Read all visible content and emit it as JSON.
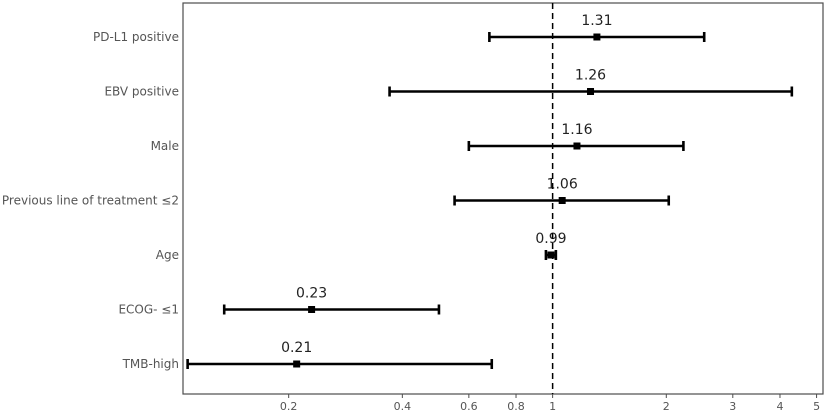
{
  "chart_data": {
    "type": "forest",
    "x_scale": "log",
    "xlim": [
      0.105,
      5.2
    ],
    "reference_line": 1,
    "x_ticks": [
      0.2,
      0.4,
      0.6,
      0.8,
      1,
      2,
      3,
      4,
      5
    ],
    "x_tick_labels": [
      "0.2",
      "0.4",
      "0.6",
      "0.8",
      "1",
      "2",
      "3",
      "4",
      "5"
    ],
    "grid": false,
    "rows": [
      {
        "label": "PD-L1 positive",
        "estimate": 1.31,
        "estimate_label": "1.31",
        "lower": 0.68,
        "upper": 2.52
      },
      {
        "label": "EBV positive",
        "estimate": 1.26,
        "estimate_label": "1.26",
        "lower": 0.37,
        "upper": 4.3
      },
      {
        "label": "Male",
        "estimate": 1.16,
        "estimate_label": "1.16",
        "lower": 0.6,
        "upper": 2.22
      },
      {
        "label": "Previous line of treatment ≤2",
        "estimate": 1.06,
        "estimate_label": "1.06",
        "lower": 0.55,
        "upper": 2.03
      },
      {
        "label": "Age",
        "estimate": 0.99,
        "estimate_label": "0.99",
        "lower": 0.96,
        "upper": 1.02
      },
      {
        "label": "ECOG- ≤1",
        "estimate": 0.23,
        "estimate_label": "0.23",
        "lower": 0.135,
        "upper": 0.5
      },
      {
        "label": "TMB-high",
        "estimate": 0.21,
        "estimate_label": "0.21",
        "lower": 0.108,
        "upper": 0.69
      }
    ],
    "colors": {
      "marks": "#000000",
      "labels": "#555555",
      "panel_border": "#4d4d4d"
    }
  }
}
